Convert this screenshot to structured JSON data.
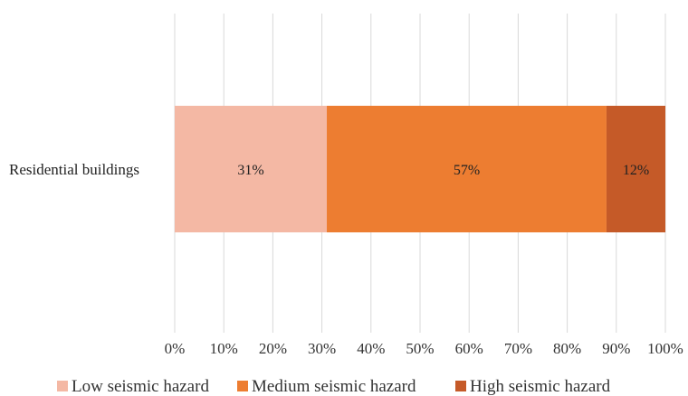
{
  "chart_data": {
    "type": "bar",
    "orientation": "horizontal",
    "stacked": "percent",
    "categories": [
      "Residential buildings"
    ],
    "series": [
      {
        "name": "Low seismic hazard",
        "values": [
          31
        ],
        "label": "31%",
        "color": "#F4B8A4"
      },
      {
        "name": "Medium seismic hazard",
        "values": [
          57
        ],
        "label": "57%",
        "color": "#ED7D31"
      },
      {
        "name": "High seismic hazard",
        "values": [
          12
        ],
        "label": "12%",
        "color": "#C55A28"
      }
    ],
    "xlim": [
      0,
      100
    ],
    "xticks": [
      "0%",
      "10%",
      "20%",
      "30%",
      "40%",
      "50%",
      "60%",
      "70%",
      "80%",
      "90%",
      "100%"
    ],
    "grid": true,
    "legend": "bottom"
  }
}
